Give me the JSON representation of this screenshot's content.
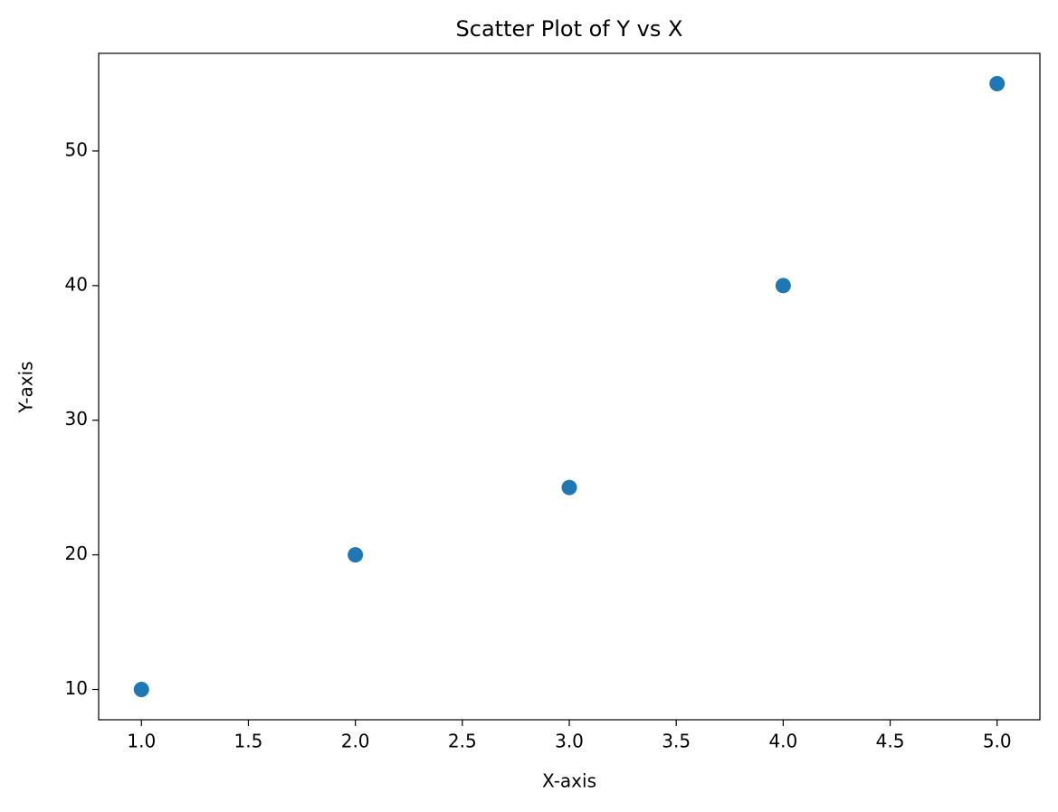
{
  "chart_data": {
    "type": "scatter",
    "title": "Scatter Plot of Y vs X",
    "x_label": "X-axis",
    "y_label": "Y-axis",
    "x": [
      1,
      2,
      3,
      4,
      5
    ],
    "values": [
      10,
      20,
      25,
      40,
      55
    ],
    "color": "#1f77b4",
    "xlim": [
      0.8,
      5.2
    ],
    "xticks": [
      {
        "value": 1,
        "label": "1.0"
      },
      1.5,
      {
        "value": 2,
        "label": "2.0"
      },
      2.5,
      {
        "value": 3,
        "label": "3.0"
      },
      3.5,
      {
        "value": 4,
        "label": "4.0"
      },
      4.5,
      {
        "value": 5,
        "label": "5.0"
      }
    ],
    "ylim": [
      7.75,
      57.25
    ],
    "yticks": [
      10,
      20,
      30,
      40,
      50
    ],
    "grid": false
  }
}
